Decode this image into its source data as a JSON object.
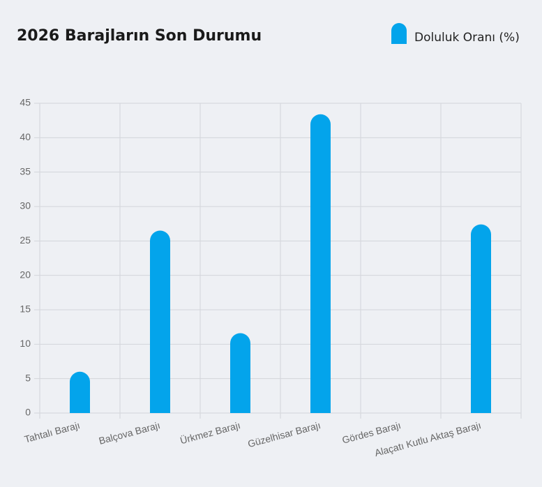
{
  "chart_data": {
    "type": "bar",
    "title": "2026 Barajların Son Durumu",
    "categories": [
      "Tahtalı Barajı",
      "Balçova Barajı",
      "Ürkmez Barajı",
      "Güzelhisar Barajı",
      "Gördes Barajı",
      "Alaçatı Kutlu Aktaş Barajı"
    ],
    "series": [
      {
        "name": "Doluluk Oranı (%)",
        "color": "#03a4eb",
        "values": [
          6,
          26.5,
          11.6,
          43.4,
          0,
          27.4
        ]
      }
    ],
    "ylim": [
      0,
      45
    ],
    "yticks": [
      0,
      5,
      10,
      15,
      20,
      25,
      30,
      35,
      40,
      45
    ],
    "grid": true,
    "legend": "top-right"
  }
}
